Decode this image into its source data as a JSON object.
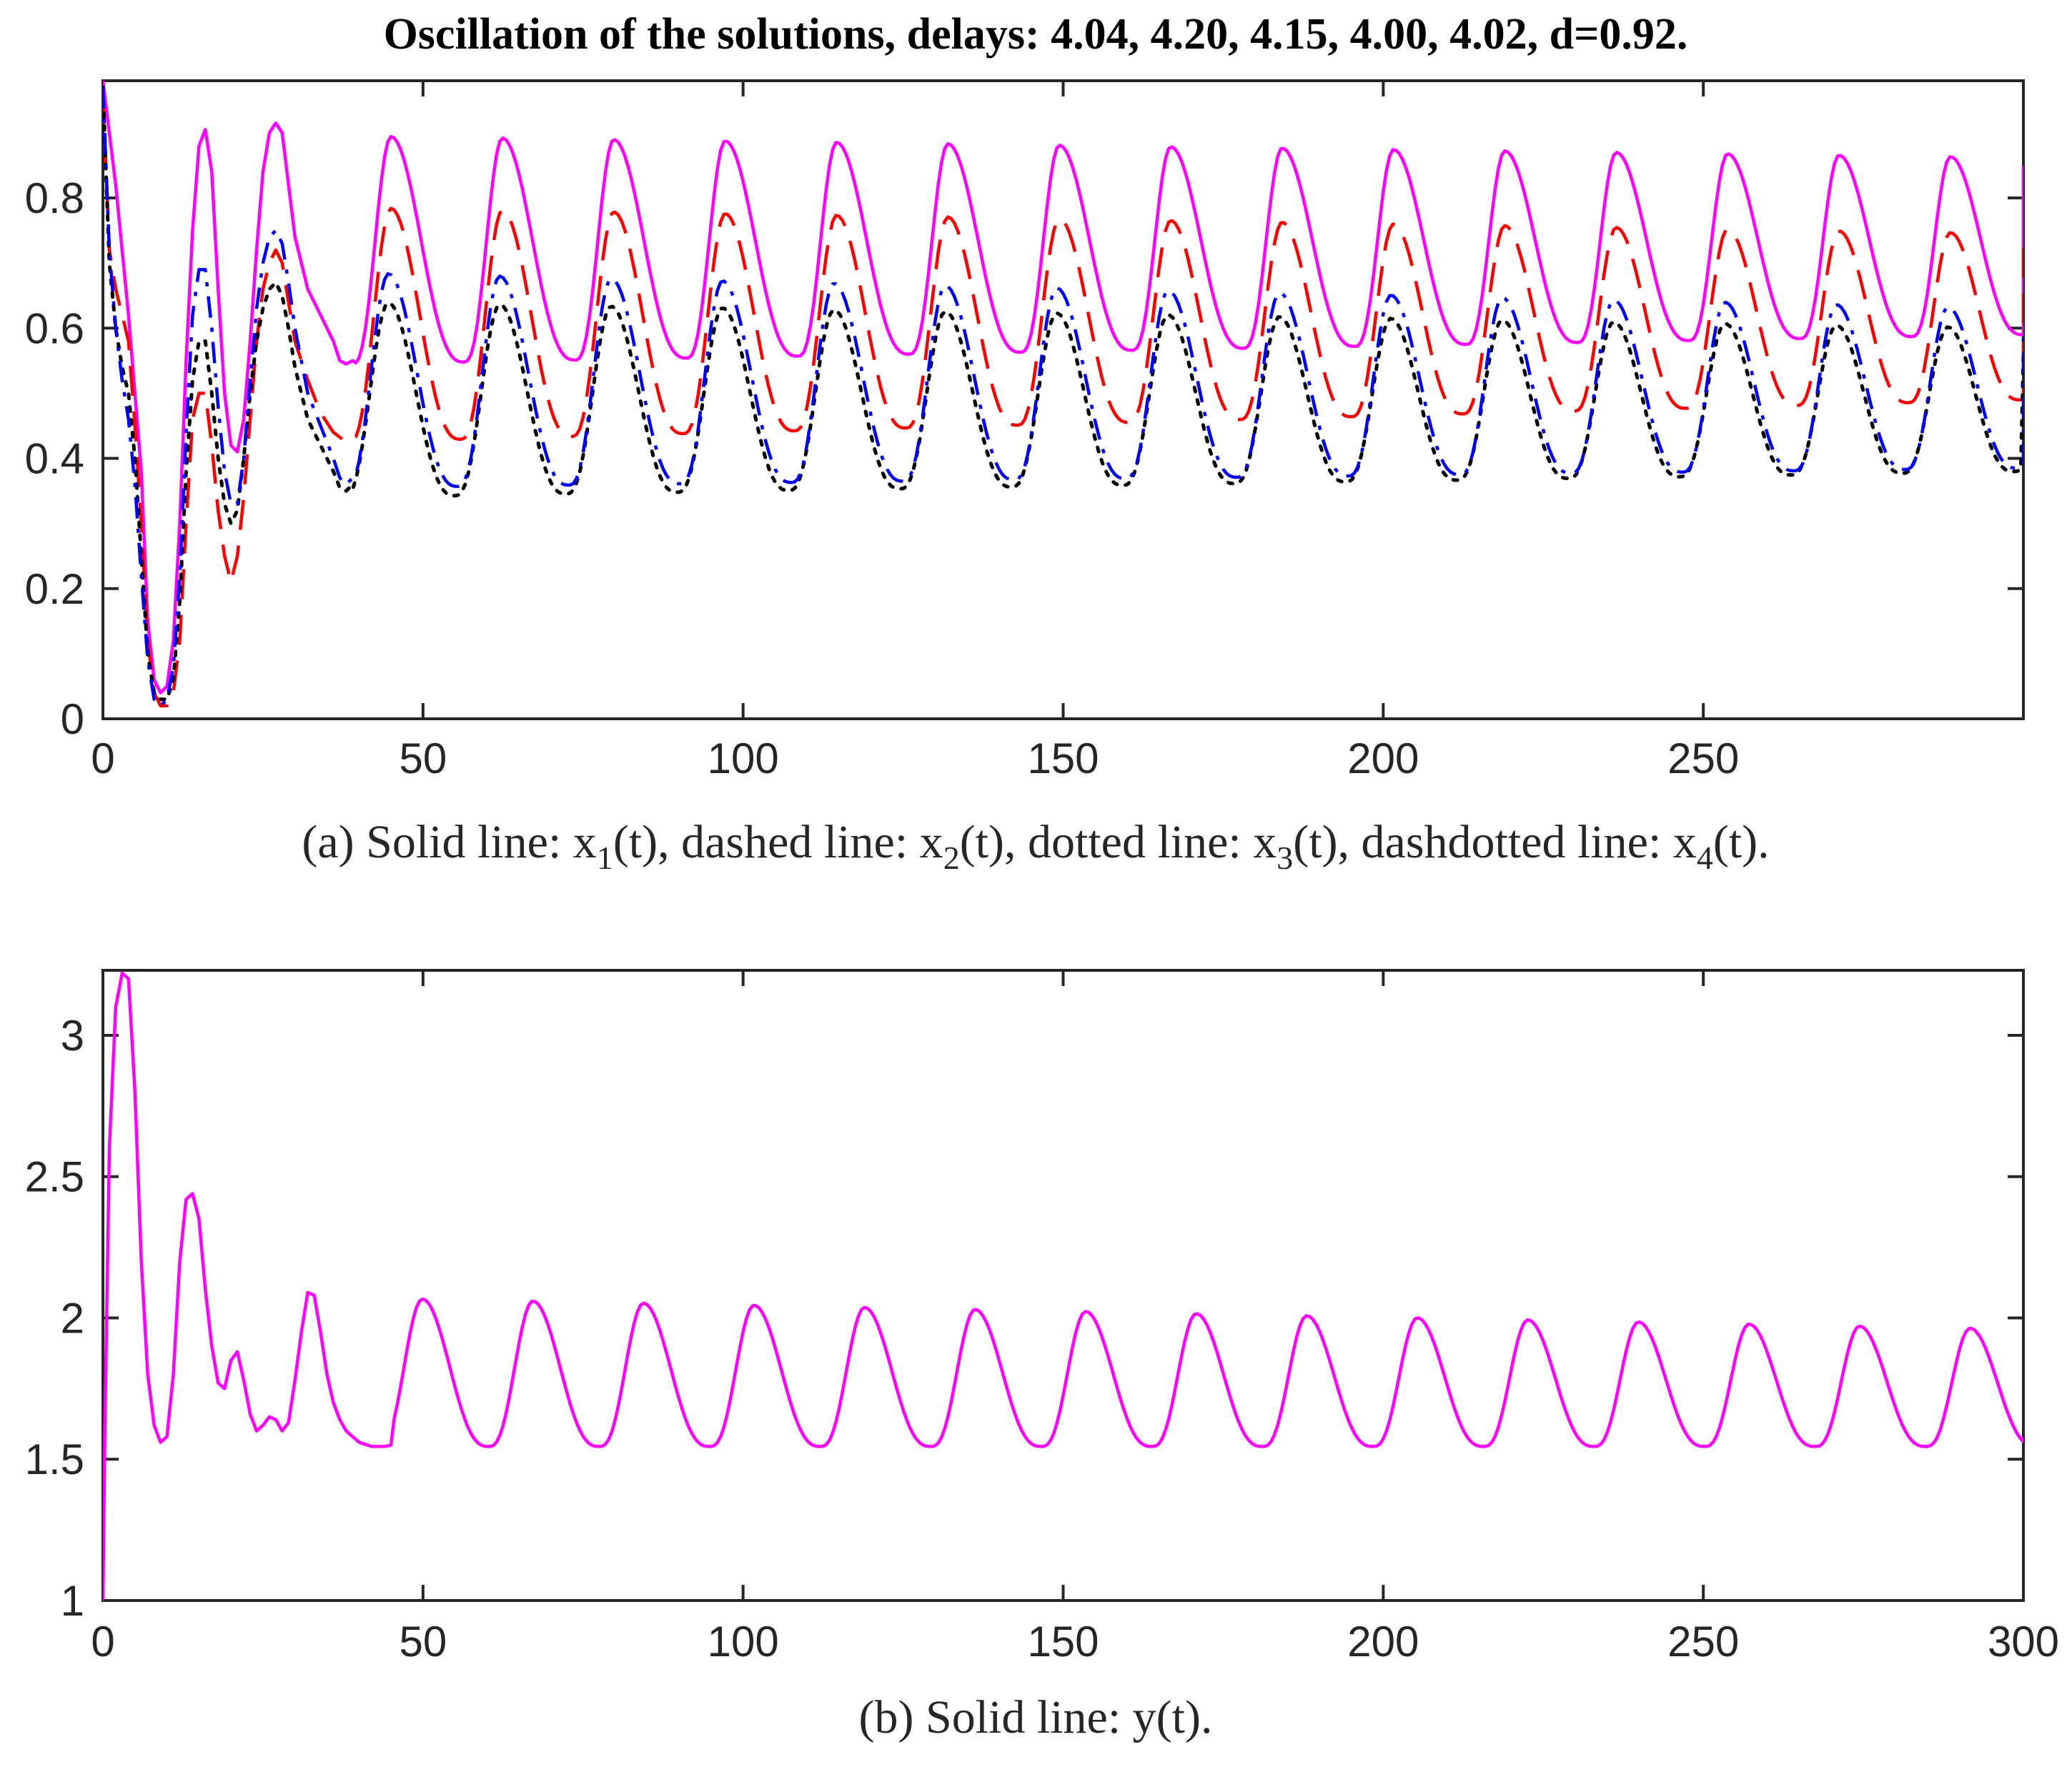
{
  "title": "Oscillation of the solutions, delays: 4.04, 4.20, 4.15, 4.00, 4.02, d=0.92.",
  "chart_data": [
    {
      "id": "a",
      "type": "line",
      "caption_parts": [
        {
          "t": "(a) Solid line: x"
        },
        {
          "t": "1",
          "sub": true
        },
        {
          "t": "(t), dashed line: x"
        },
        {
          "t": "2",
          "sub": true
        },
        {
          "t": "(t), dotted line: x"
        },
        {
          "t": "3",
          "sub": true
        },
        {
          "t": "(t), dashdotted line: x"
        },
        {
          "t": "4",
          "sub": true
        },
        {
          "t": "(t)."
        }
      ],
      "xlim": [
        0,
        300
      ],
      "ylim": [
        0,
        0.98
      ],
      "xticks": [
        0,
        50,
        100,
        150,
        200,
        250
      ],
      "yticks": [
        0,
        0.2,
        0.4,
        0.6,
        0.8
      ],
      "xtick_labels": [
        "0",
        "50",
        "100",
        "150",
        "200",
        "250"
      ],
      "ytick_labels": [
        "0",
        "0.2",
        "0.4",
        "0.6",
        "0.8"
      ],
      "period": 17.4,
      "series": [
        {
          "name": "x1(t)",
          "style": "solid",
          "color": "#ff00ff",
          "transient": [
            [
              0,
              0.98
            ],
            [
              2,
              0.82
            ],
            [
              4,
              0.62
            ],
            [
              6,
              0.38
            ],
            [
              7,
              0.15
            ],
            [
              8,
              0.06
            ],
            [
              9,
              0.04
            ],
            [
              10,
              0.05
            ],
            [
              11,
              0.12
            ],
            [
              12,
              0.3
            ],
            [
              13,
              0.55
            ],
            [
              14,
              0.75
            ],
            [
              15,
              0.88
            ],
            [
              16,
              0.905
            ],
            [
              17,
              0.84
            ],
            [
              18,
              0.66
            ],
            [
              19,
              0.5
            ],
            [
              20,
              0.42
            ],
            [
              21,
              0.41
            ],
            [
              22,
              0.46
            ],
            [
              23,
              0.58
            ],
            [
              24,
              0.72
            ],
            [
              25,
              0.84
            ],
            [
              26,
              0.9
            ],
            [
              27,
              0.915
            ],
            [
              28,
              0.9
            ],
            [
              29,
              0.82
            ],
            [
              30,
              0.74
            ],
            [
              32,
              0.66
            ],
            [
              34,
              0.62
            ],
            [
              36,
              0.58
            ],
            [
              37,
              0.55
            ],
            [
              38,
              0.545
            ],
            [
              39,
              0.55
            ]
          ],
          "cycle_start": 39,
          "peak_offset": 6.0,
          "max_start": 0.895,
          "max_end": 0.862,
          "min_start": 0.545,
          "min_end": 0.59,
          "end_y": 0.85
        },
        {
          "name": "x2(t)",
          "style": "dashed",
          "color": "#ff0000",
          "transient": [
            [
              0,
              0.96
            ],
            [
              1,
              0.72
            ],
            [
              2,
              0.66
            ],
            [
              3,
              0.62
            ],
            [
              4,
              0.58
            ],
            [
              5,
              0.45
            ],
            [
              6,
              0.3
            ],
            [
              7,
              0.12
            ],
            [
              8,
              0.04
            ],
            [
              9,
              0.02
            ],
            [
              10,
              0.02
            ],
            [
              11,
              0.04
            ],
            [
              12,
              0.12
            ],
            [
              13,
              0.3
            ],
            [
              14,
              0.46
            ],
            [
              15,
              0.5
            ],
            [
              16,
              0.5
            ],
            [
              17,
              0.42
            ],
            [
              18,
              0.32
            ],
            [
              19,
              0.25
            ],
            [
              20,
              0.21
            ],
            [
              21,
              0.25
            ],
            [
              22,
              0.34
            ],
            [
              23,
              0.46
            ],
            [
              24,
              0.58
            ],
            [
              25,
              0.66
            ],
            [
              26,
              0.7
            ],
            [
              27,
              0.72
            ],
            [
              28,
              0.7
            ],
            [
              29,
              0.64
            ],
            [
              30,
              0.58
            ],
            [
              32,
              0.52
            ],
            [
              34,
              0.47
            ],
            [
              36,
              0.44
            ],
            [
              38,
              0.425
            ],
            [
              39,
              0.43
            ]
          ],
          "cycle_start": 38.5,
          "peak_offset": 6.5,
          "max_start": 0.785,
          "max_end": 0.745,
          "min_start": 0.425,
          "min_end": 0.49,
          "end_y": 0.73
        },
        {
          "name": "x3(t)",
          "style": "dotted",
          "color": "#000000",
          "transient": [
            [
              0,
              0.97
            ],
            [
              1,
              0.7
            ],
            [
              2,
              0.6
            ],
            [
              3,
              0.54
            ],
            [
              4,
              0.5
            ],
            [
              5,
              0.4
            ],
            [
              6,
              0.25
            ],
            [
              7,
              0.1
            ],
            [
              8,
              0.04
            ],
            [
              9,
              0.03
            ],
            [
              10,
              0.03
            ],
            [
              11,
              0.06
            ],
            [
              12,
              0.18
            ],
            [
              13,
              0.38
            ],
            [
              14,
              0.52
            ],
            [
              15,
              0.58
            ],
            [
              16,
              0.58
            ],
            [
              17,
              0.5
            ],
            [
              18,
              0.4
            ],
            [
              19,
              0.33
            ],
            [
              20,
              0.3
            ],
            [
              21,
              0.32
            ],
            [
              22,
              0.4
            ],
            [
              23,
              0.5
            ],
            [
              24,
              0.58
            ],
            [
              25,
              0.63
            ],
            [
              26,
              0.66
            ],
            [
              27,
              0.67
            ],
            [
              28,
              0.65
            ],
            [
              29,
              0.6
            ],
            [
              30,
              0.54
            ],
            [
              32,
              0.46
            ],
            [
              34,
              0.42
            ],
            [
              36,
              0.38
            ],
            [
              37,
              0.355
            ],
            [
              38,
              0.35
            ],
            [
              39,
              0.36
            ]
          ],
          "cycle_start": 37.6,
          "peak_offset": 7.0,
          "max_start": 0.64,
          "max_end": 0.6,
          "min_start": 0.34,
          "min_end": 0.38,
          "end_y": 0.56
        },
        {
          "name": "x4(t)",
          "style": "dashdot",
          "color": "#0000ff",
          "transient": [
            [
              0,
              0.97
            ],
            [
              1,
              0.72
            ],
            [
              2,
              0.6
            ],
            [
              3,
              0.52
            ],
            [
              4,
              0.46
            ],
            [
              5,
              0.36
            ],
            [
              6,
              0.22
            ],
            [
              7,
              0.09
            ],
            [
              8,
              0.03
            ],
            [
              9,
              0.02
            ],
            [
              10,
              0.03
            ],
            [
              11,
              0.08
            ],
            [
              12,
              0.22
            ],
            [
              13,
              0.44
            ],
            [
              14,
              0.62
            ],
            [
              15,
              0.69
            ],
            [
              16,
              0.69
            ],
            [
              17,
              0.6
            ],
            [
              18,
              0.48
            ],
            [
              19,
              0.38
            ],
            [
              20,
              0.33
            ],
            [
              21,
              0.33
            ],
            [
              22,
              0.4
            ],
            [
              23,
              0.52
            ],
            [
              24,
              0.63
            ],
            [
              25,
              0.7
            ],
            [
              26,
              0.74
            ],
            [
              27,
              0.75
            ],
            [
              28,
              0.73
            ],
            [
              29,
              0.67
            ],
            [
              30,
              0.6
            ],
            [
              32,
              0.5
            ],
            [
              34,
              0.45
            ],
            [
              36,
              0.4
            ],
            [
              37,
              0.37
            ],
            [
              38,
              0.36
            ],
            [
              39,
              0.37
            ]
          ],
          "cycle_start": 38,
          "peak_offset": 6.6,
          "max_start": 0.685,
          "max_end": 0.63,
          "min_start": 0.355,
          "min_end": 0.385,
          "end_y": 0.6
        }
      ]
    },
    {
      "id": "b",
      "type": "line",
      "caption_parts": [
        {
          "t": "(b) Solid line: y(t)."
        }
      ],
      "xlim": [
        0,
        300
      ],
      "ylim": [
        1,
        3.23
      ],
      "xticks": [
        0,
        50,
        100,
        150,
        200,
        250,
        300
      ],
      "yticks": [
        1,
        1.5,
        2,
        2.5,
        3
      ],
      "xtick_labels": [
        "0",
        "50",
        "100",
        "150",
        "200",
        "250",
        "300"
      ],
      "ytick_labels": [
        "1",
        "1.5",
        "2",
        "2.5",
        "3"
      ],
      "period": 17.27,
      "series": [
        {
          "name": "y(t)",
          "style": "solid",
          "color": "#ff00ff",
          "transient": [
            [
              0,
              1.0
            ],
            [
              0.3,
              1.6
            ],
            [
              1,
              2.6
            ],
            [
              2,
              3.1
            ],
            [
              3,
              3.22
            ],
            [
              4,
              3.2
            ],
            [
              5,
              2.8
            ],
            [
              6,
              2.2
            ],
            [
              7,
              1.8
            ],
            [
              8,
              1.62
            ],
            [
              9,
              1.56
            ],
            [
              10,
              1.58
            ],
            [
              11,
              1.8
            ],
            [
              12,
              2.2
            ],
            [
              13,
              2.42
            ],
            [
              14,
              2.44
            ],
            [
              15,
              2.35
            ],
            [
              16,
              2.1
            ],
            [
              17,
              1.9
            ],
            [
              18,
              1.77
            ],
            [
              19,
              1.75
            ],
            [
              20,
              1.85
            ],
            [
              21,
              1.88
            ],
            [
              22,
              1.78
            ],
            [
              23,
              1.66
            ],
            [
              24,
              1.6
            ],
            [
              25,
              1.62
            ],
            [
              26,
              1.65
            ],
            [
              27,
              1.64
            ],
            [
              28,
              1.6
            ],
            [
              29,
              1.63
            ],
            [
              30,
              1.78
            ],
            [
              31,
              1.95
            ],
            [
              32,
              2.09
            ],
            [
              33,
              2.08
            ],
            [
              34,
              1.95
            ],
            [
              35,
              1.8
            ],
            [
              36,
              1.7
            ],
            [
              37,
              1.64
            ],
            [
              38,
              1.6
            ],
            [
              40,
              1.56
            ],
            [
              42,
              1.545
            ],
            [
              44,
              1.545
            ],
            [
              45,
              1.55
            ]
          ],
          "cycle_start": 43,
          "peak_offset": 6.9,
          "max_start": 2.07,
          "max_end": 1.96,
          "min_start": 1.545,
          "min_end": 1.545,
          "end_y": 1.58
        }
      ]
    }
  ]
}
